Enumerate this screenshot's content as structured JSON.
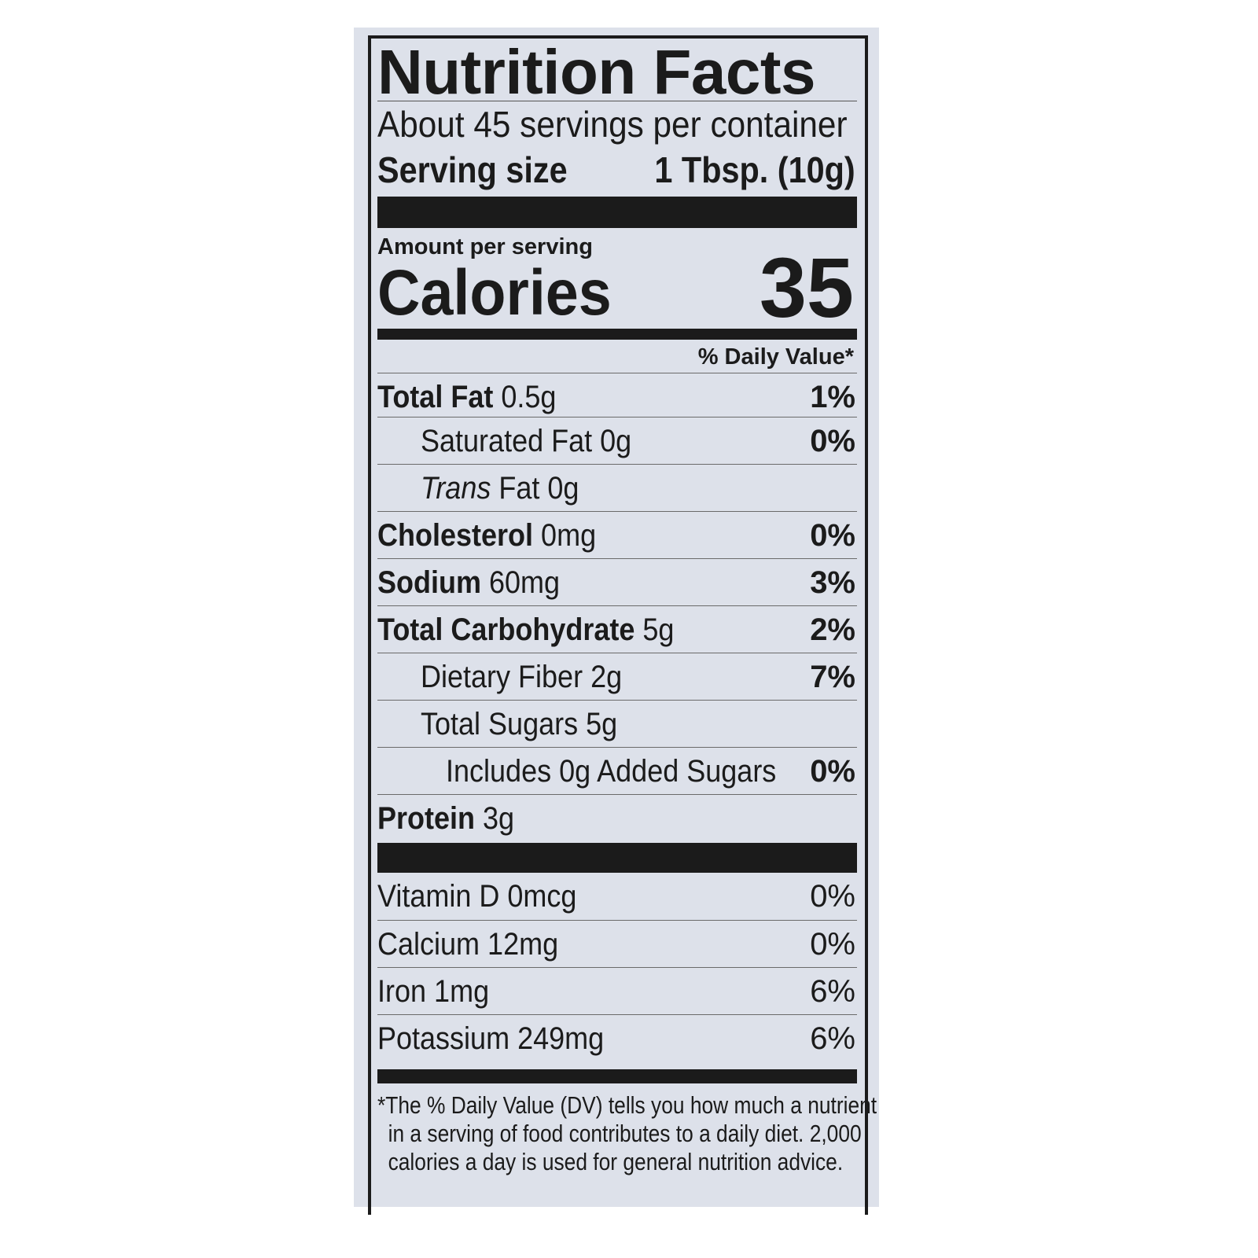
{
  "label": {
    "title": "Nutrition Facts",
    "servings_per_container": "About 45 servings per container",
    "serving_size_label": "Serving size",
    "serving_size_value": "1 Tbsp. (10g)",
    "amount_per_serving": "Amount per serving",
    "calories_label": "Calories",
    "calories_value": "35",
    "daily_value_header": "% Daily Value*",
    "nutrients": [
      {
        "name": "Total Fat",
        "amount": "0.5g",
        "dv": "1%"
      },
      {
        "name": "Saturated Fat",
        "amount": "0g",
        "dv": "0%"
      },
      {
        "name": "Trans",
        "name_rest": "Fat",
        "amount": "0g",
        "dv": ""
      },
      {
        "name": "Cholesterol",
        "amount": "0mg",
        "dv": "0%"
      },
      {
        "name": "Sodium",
        "amount": "60mg",
        "dv": "3%"
      },
      {
        "name": "Total Carbohydrate",
        "amount": "5g",
        "dv": "2%"
      },
      {
        "name": "Dietary Fiber",
        "amount": "2g",
        "dv": "7%"
      },
      {
        "name": "Total Sugars",
        "amount": "5g",
        "dv": ""
      },
      {
        "name": "Includes 0g Added Sugars",
        "amount": "",
        "dv": "0%"
      },
      {
        "name": "Protein",
        "amount": "3g",
        "dv": ""
      }
    ],
    "vitamins": [
      {
        "name": "Vitamin D",
        "amount": "0mcg",
        "dv": "0%"
      },
      {
        "name": "Calcium",
        "amount": "12mg",
        "dv": "0%"
      },
      {
        "name": "Iron",
        "amount": "1mg",
        "dv": "6%"
      },
      {
        "name": "Potassium",
        "amount": "249mg",
        "dv": "6%"
      }
    ],
    "footnote": [
      "*The % Daily Value (DV) tells you how much a nutrient",
      "in a serving of food contributes to a daily diet. 2,000",
      "calories a day is used for general nutrition advice."
    ]
  },
  "colors": {
    "background": "#dde1ea",
    "ink": "#1b1b1b"
  }
}
